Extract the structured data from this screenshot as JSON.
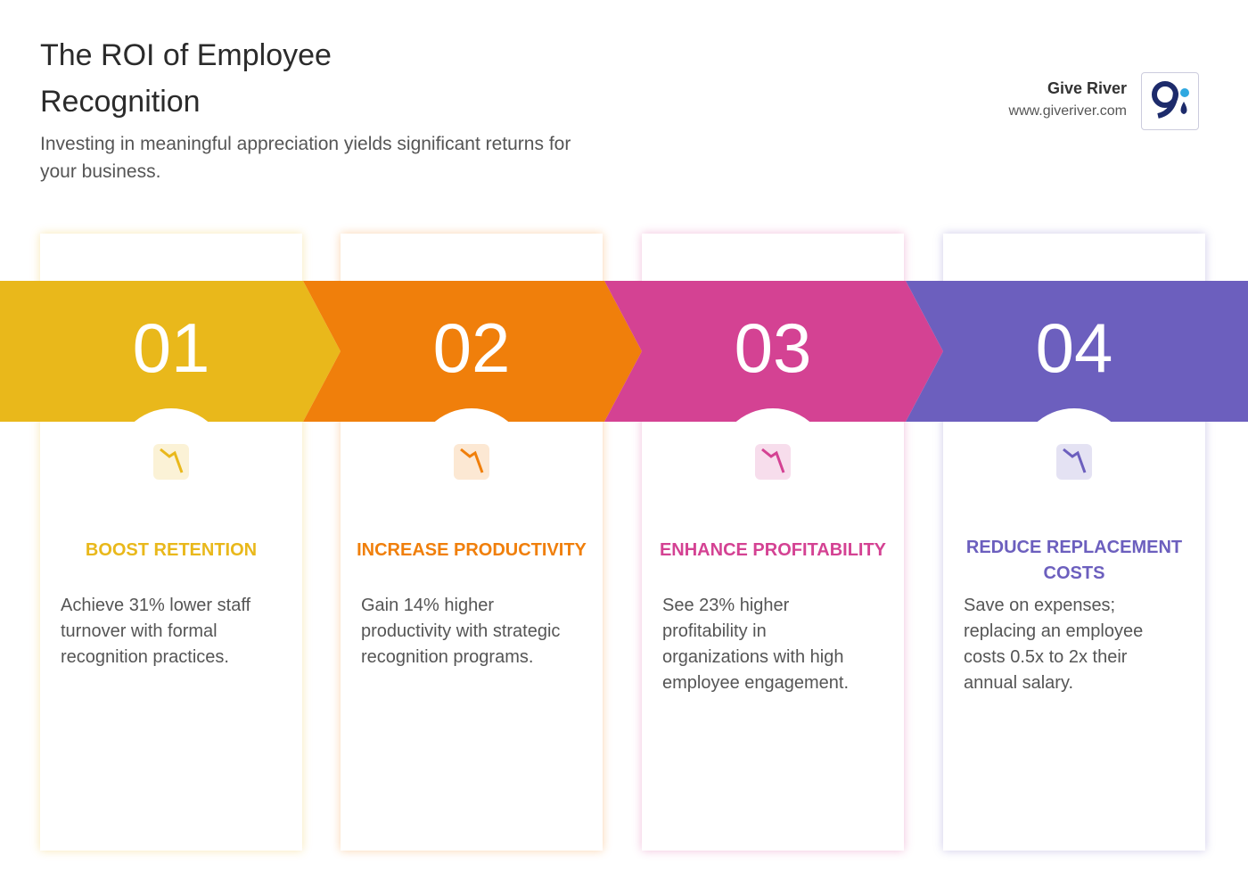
{
  "header": {
    "title": "The ROI of Employee Recognition",
    "subtitle": "Investing in meaningful appreciation yields significant returns for your business."
  },
  "brand": {
    "name": "Give River",
    "url": "www.giveriver.com"
  },
  "cards": [
    {
      "number": "01",
      "title": "BOOST RETENTION",
      "text": "Achieve 31% lower staff turnover with formal recognition practices.",
      "color": "#e9b81b"
    },
    {
      "number": "02",
      "title": "INCREASE PRODUCTIVITY",
      "text": "Gain 14% higher productivity with strategic recognition programs.",
      "color": "#f07f0b"
    },
    {
      "number": "03",
      "title": "ENHANCE PROFITABILITY",
      "text": "See 23% higher profitability in organizations with high employee engagement.",
      "color": "#d44293"
    },
    {
      "number": "04",
      "title": "REDUCE REPLACEMENT COSTS",
      "text": "Save on expenses; replacing an employee costs 0.5x to 2x their annual salary.",
      "color": "#6c5fbe"
    }
  ]
}
